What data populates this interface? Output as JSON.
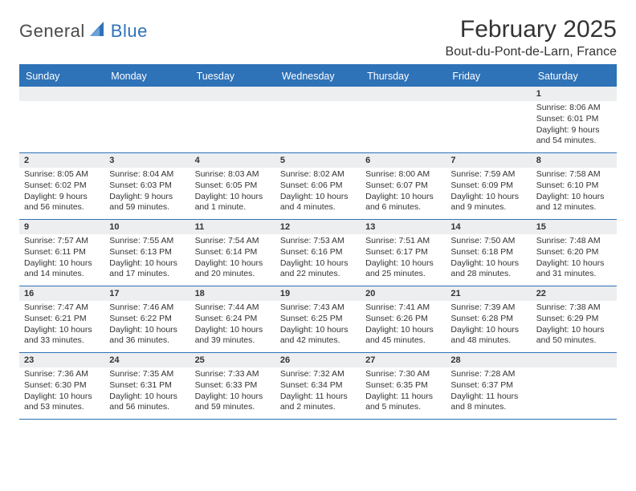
{
  "logo": {
    "t1": "General",
    "t2": "Blue"
  },
  "title": "February 2025",
  "location": "Bout-du-Pont-de-Larn, France",
  "colors": {
    "accent": "#2e72b8",
    "band": "#eceef0",
    "text": "#333333"
  },
  "dayHeaders": [
    "Sunday",
    "Monday",
    "Tuesday",
    "Wednesday",
    "Thursday",
    "Friday",
    "Saturday"
  ],
  "weeks": [
    [
      {
        "n": "",
        "sr": "",
        "ss": "",
        "dl": ""
      },
      {
        "n": "",
        "sr": "",
        "ss": "",
        "dl": ""
      },
      {
        "n": "",
        "sr": "",
        "ss": "",
        "dl": ""
      },
      {
        "n": "",
        "sr": "",
        "ss": "",
        "dl": ""
      },
      {
        "n": "",
        "sr": "",
        "ss": "",
        "dl": ""
      },
      {
        "n": "",
        "sr": "",
        "ss": "",
        "dl": ""
      },
      {
        "n": "1",
        "sr": "Sunrise: 8:06 AM",
        "ss": "Sunset: 6:01 PM",
        "dl": "Daylight: 9 hours and 54 minutes."
      }
    ],
    [
      {
        "n": "2",
        "sr": "Sunrise: 8:05 AM",
        "ss": "Sunset: 6:02 PM",
        "dl": "Daylight: 9 hours and 56 minutes."
      },
      {
        "n": "3",
        "sr": "Sunrise: 8:04 AM",
        "ss": "Sunset: 6:03 PM",
        "dl": "Daylight: 9 hours and 59 minutes."
      },
      {
        "n": "4",
        "sr": "Sunrise: 8:03 AM",
        "ss": "Sunset: 6:05 PM",
        "dl": "Daylight: 10 hours and 1 minute."
      },
      {
        "n": "5",
        "sr": "Sunrise: 8:02 AM",
        "ss": "Sunset: 6:06 PM",
        "dl": "Daylight: 10 hours and 4 minutes."
      },
      {
        "n": "6",
        "sr": "Sunrise: 8:00 AM",
        "ss": "Sunset: 6:07 PM",
        "dl": "Daylight: 10 hours and 6 minutes."
      },
      {
        "n": "7",
        "sr": "Sunrise: 7:59 AM",
        "ss": "Sunset: 6:09 PM",
        "dl": "Daylight: 10 hours and 9 minutes."
      },
      {
        "n": "8",
        "sr": "Sunrise: 7:58 AM",
        "ss": "Sunset: 6:10 PM",
        "dl": "Daylight: 10 hours and 12 minutes."
      }
    ],
    [
      {
        "n": "9",
        "sr": "Sunrise: 7:57 AM",
        "ss": "Sunset: 6:11 PM",
        "dl": "Daylight: 10 hours and 14 minutes."
      },
      {
        "n": "10",
        "sr": "Sunrise: 7:55 AM",
        "ss": "Sunset: 6:13 PM",
        "dl": "Daylight: 10 hours and 17 minutes."
      },
      {
        "n": "11",
        "sr": "Sunrise: 7:54 AM",
        "ss": "Sunset: 6:14 PM",
        "dl": "Daylight: 10 hours and 20 minutes."
      },
      {
        "n": "12",
        "sr": "Sunrise: 7:53 AM",
        "ss": "Sunset: 6:16 PM",
        "dl": "Daylight: 10 hours and 22 minutes."
      },
      {
        "n": "13",
        "sr": "Sunrise: 7:51 AM",
        "ss": "Sunset: 6:17 PM",
        "dl": "Daylight: 10 hours and 25 minutes."
      },
      {
        "n": "14",
        "sr": "Sunrise: 7:50 AM",
        "ss": "Sunset: 6:18 PM",
        "dl": "Daylight: 10 hours and 28 minutes."
      },
      {
        "n": "15",
        "sr": "Sunrise: 7:48 AM",
        "ss": "Sunset: 6:20 PM",
        "dl": "Daylight: 10 hours and 31 minutes."
      }
    ],
    [
      {
        "n": "16",
        "sr": "Sunrise: 7:47 AM",
        "ss": "Sunset: 6:21 PM",
        "dl": "Daylight: 10 hours and 33 minutes."
      },
      {
        "n": "17",
        "sr": "Sunrise: 7:46 AM",
        "ss": "Sunset: 6:22 PM",
        "dl": "Daylight: 10 hours and 36 minutes."
      },
      {
        "n": "18",
        "sr": "Sunrise: 7:44 AM",
        "ss": "Sunset: 6:24 PM",
        "dl": "Daylight: 10 hours and 39 minutes."
      },
      {
        "n": "19",
        "sr": "Sunrise: 7:43 AM",
        "ss": "Sunset: 6:25 PM",
        "dl": "Daylight: 10 hours and 42 minutes."
      },
      {
        "n": "20",
        "sr": "Sunrise: 7:41 AM",
        "ss": "Sunset: 6:26 PM",
        "dl": "Daylight: 10 hours and 45 minutes."
      },
      {
        "n": "21",
        "sr": "Sunrise: 7:39 AM",
        "ss": "Sunset: 6:28 PM",
        "dl": "Daylight: 10 hours and 48 minutes."
      },
      {
        "n": "22",
        "sr": "Sunrise: 7:38 AM",
        "ss": "Sunset: 6:29 PM",
        "dl": "Daylight: 10 hours and 50 minutes."
      }
    ],
    [
      {
        "n": "23",
        "sr": "Sunrise: 7:36 AM",
        "ss": "Sunset: 6:30 PM",
        "dl": "Daylight: 10 hours and 53 minutes."
      },
      {
        "n": "24",
        "sr": "Sunrise: 7:35 AM",
        "ss": "Sunset: 6:31 PM",
        "dl": "Daylight: 10 hours and 56 minutes."
      },
      {
        "n": "25",
        "sr": "Sunrise: 7:33 AM",
        "ss": "Sunset: 6:33 PM",
        "dl": "Daylight: 10 hours and 59 minutes."
      },
      {
        "n": "26",
        "sr": "Sunrise: 7:32 AM",
        "ss": "Sunset: 6:34 PM",
        "dl": "Daylight: 11 hours and 2 minutes."
      },
      {
        "n": "27",
        "sr": "Sunrise: 7:30 AM",
        "ss": "Sunset: 6:35 PM",
        "dl": "Daylight: 11 hours and 5 minutes."
      },
      {
        "n": "28",
        "sr": "Sunrise: 7:28 AM",
        "ss": "Sunset: 6:37 PM",
        "dl": "Daylight: 11 hours and 8 minutes."
      },
      {
        "n": "",
        "sr": "",
        "ss": "",
        "dl": ""
      }
    ]
  ]
}
